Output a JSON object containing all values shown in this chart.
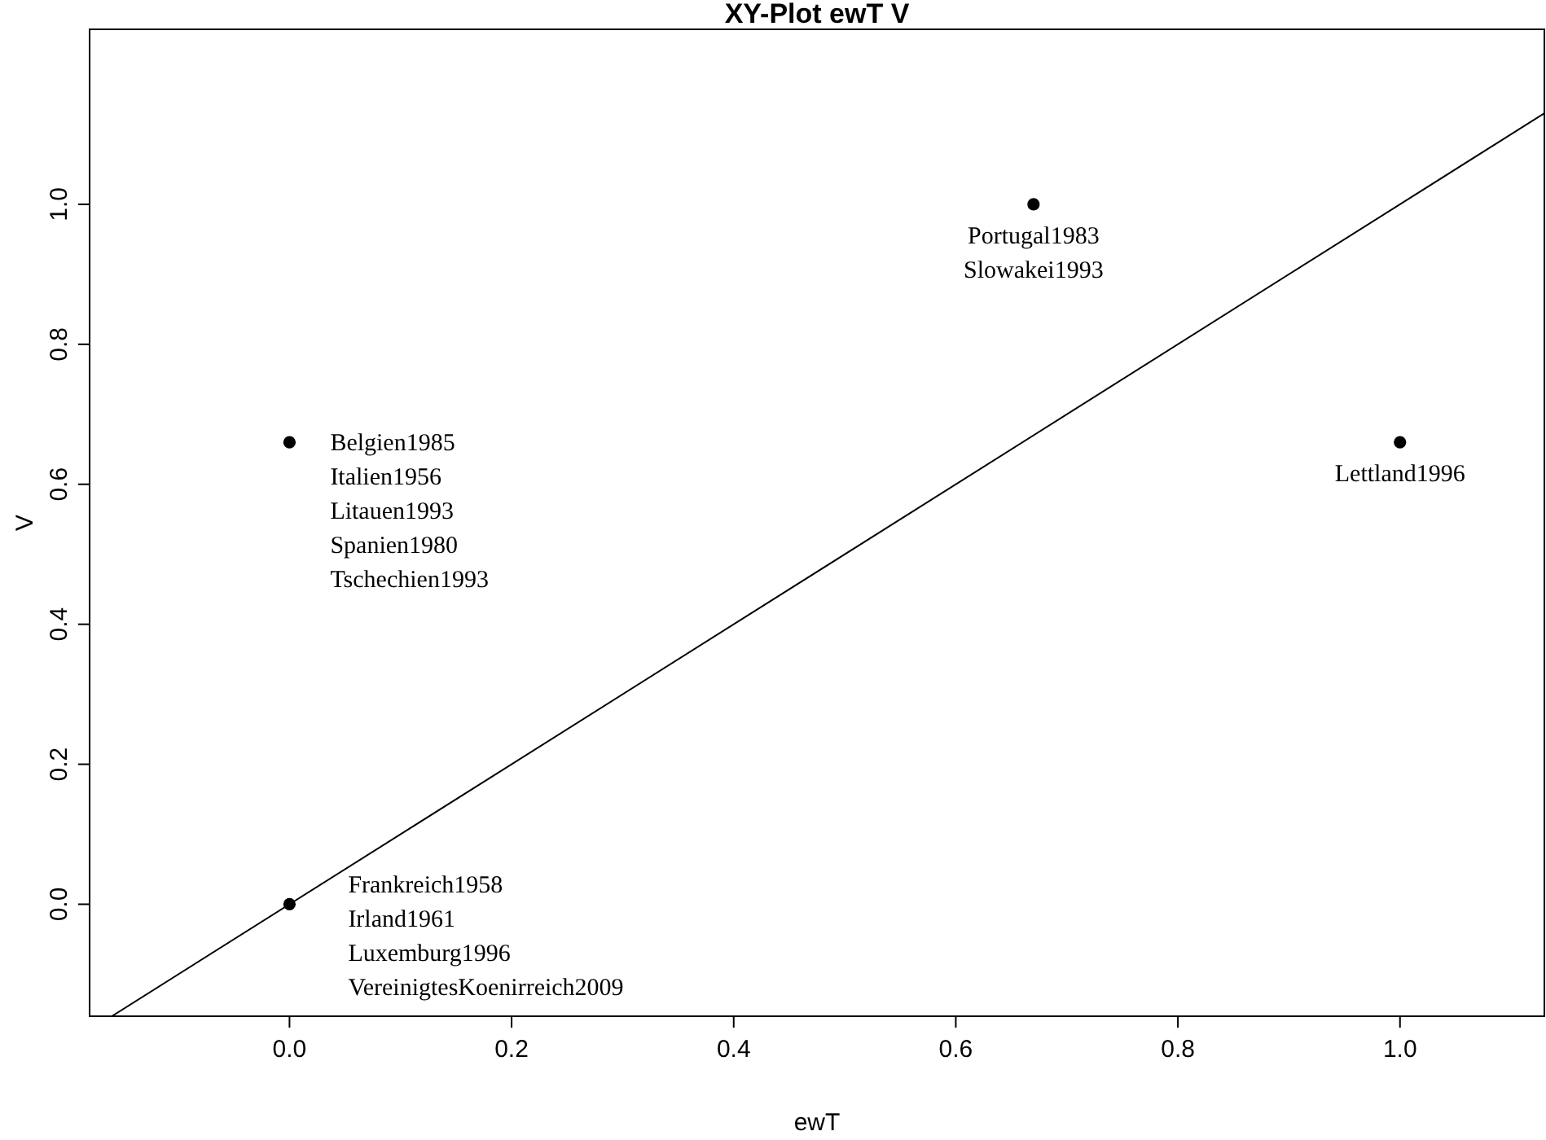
{
  "chart_data": {
    "type": "scatter",
    "title": "XY-Plot ewT V",
    "xlabel": "ewT",
    "ylabel": "V",
    "xlim": [
      -0.18,
      1.13
    ],
    "ylim": [
      -0.16,
      1.25
    ],
    "xticks": [
      {
        "value": 0,
        "label": "0.0"
      },
      {
        "value": 0.2,
        "label": "0.2"
      },
      {
        "value": 0.4,
        "label": "0.4"
      },
      {
        "value": 0.6,
        "label": "0.6"
      },
      {
        "value": 0.8,
        "label": "0.8"
      },
      {
        "value": 1,
        "label": "1.0"
      }
    ],
    "yticks": [
      {
        "value": 0,
        "label": "0.0"
      },
      {
        "value": 0.2,
        "label": "0.2"
      },
      {
        "value": 0.4,
        "label": "0.4"
      },
      {
        "value": 0.6,
        "label": "0.6"
      },
      {
        "value": 0.8,
        "label": "0.8"
      },
      {
        "value": 1,
        "label": "1.0"
      }
    ],
    "grid": false,
    "marker": "circle",
    "series": [
      {
        "color": "#000000",
        "x": [
          0,
          0,
          0.67,
          1
        ],
        "values": [
          0,
          0.66,
          1,
          0.66
        ]
      },
      {
        "type": "line",
        "color": "#000000",
        "marker": "none",
        "line_style": "solid",
        "x": [
          -0.16,
          1.13
        ],
        "values": [
          -0.16,
          1.13
        ]
      }
    ],
    "annotations": [
      {
        "text": "Portugal1983",
        "x": 0.67,
        "y": 1
      },
      "Slowakei1993",
      {
        "text": "Belgien1985",
        "x": 0,
        "y": 0.66
      },
      "Italien1956",
      "Litauen1993",
      "Spanien1980",
      "Tschechien1993",
      {
        "text": "Lettland1996",
        "x": 1,
        "y": 0.66
      },
      {
        "text": "Frankreich1958",
        "x": 0,
        "y": 0
      },
      "Irland1961",
      "Luxemburg1996",
      "VereinigtesKoenirreich2009"
    ]
  }
}
